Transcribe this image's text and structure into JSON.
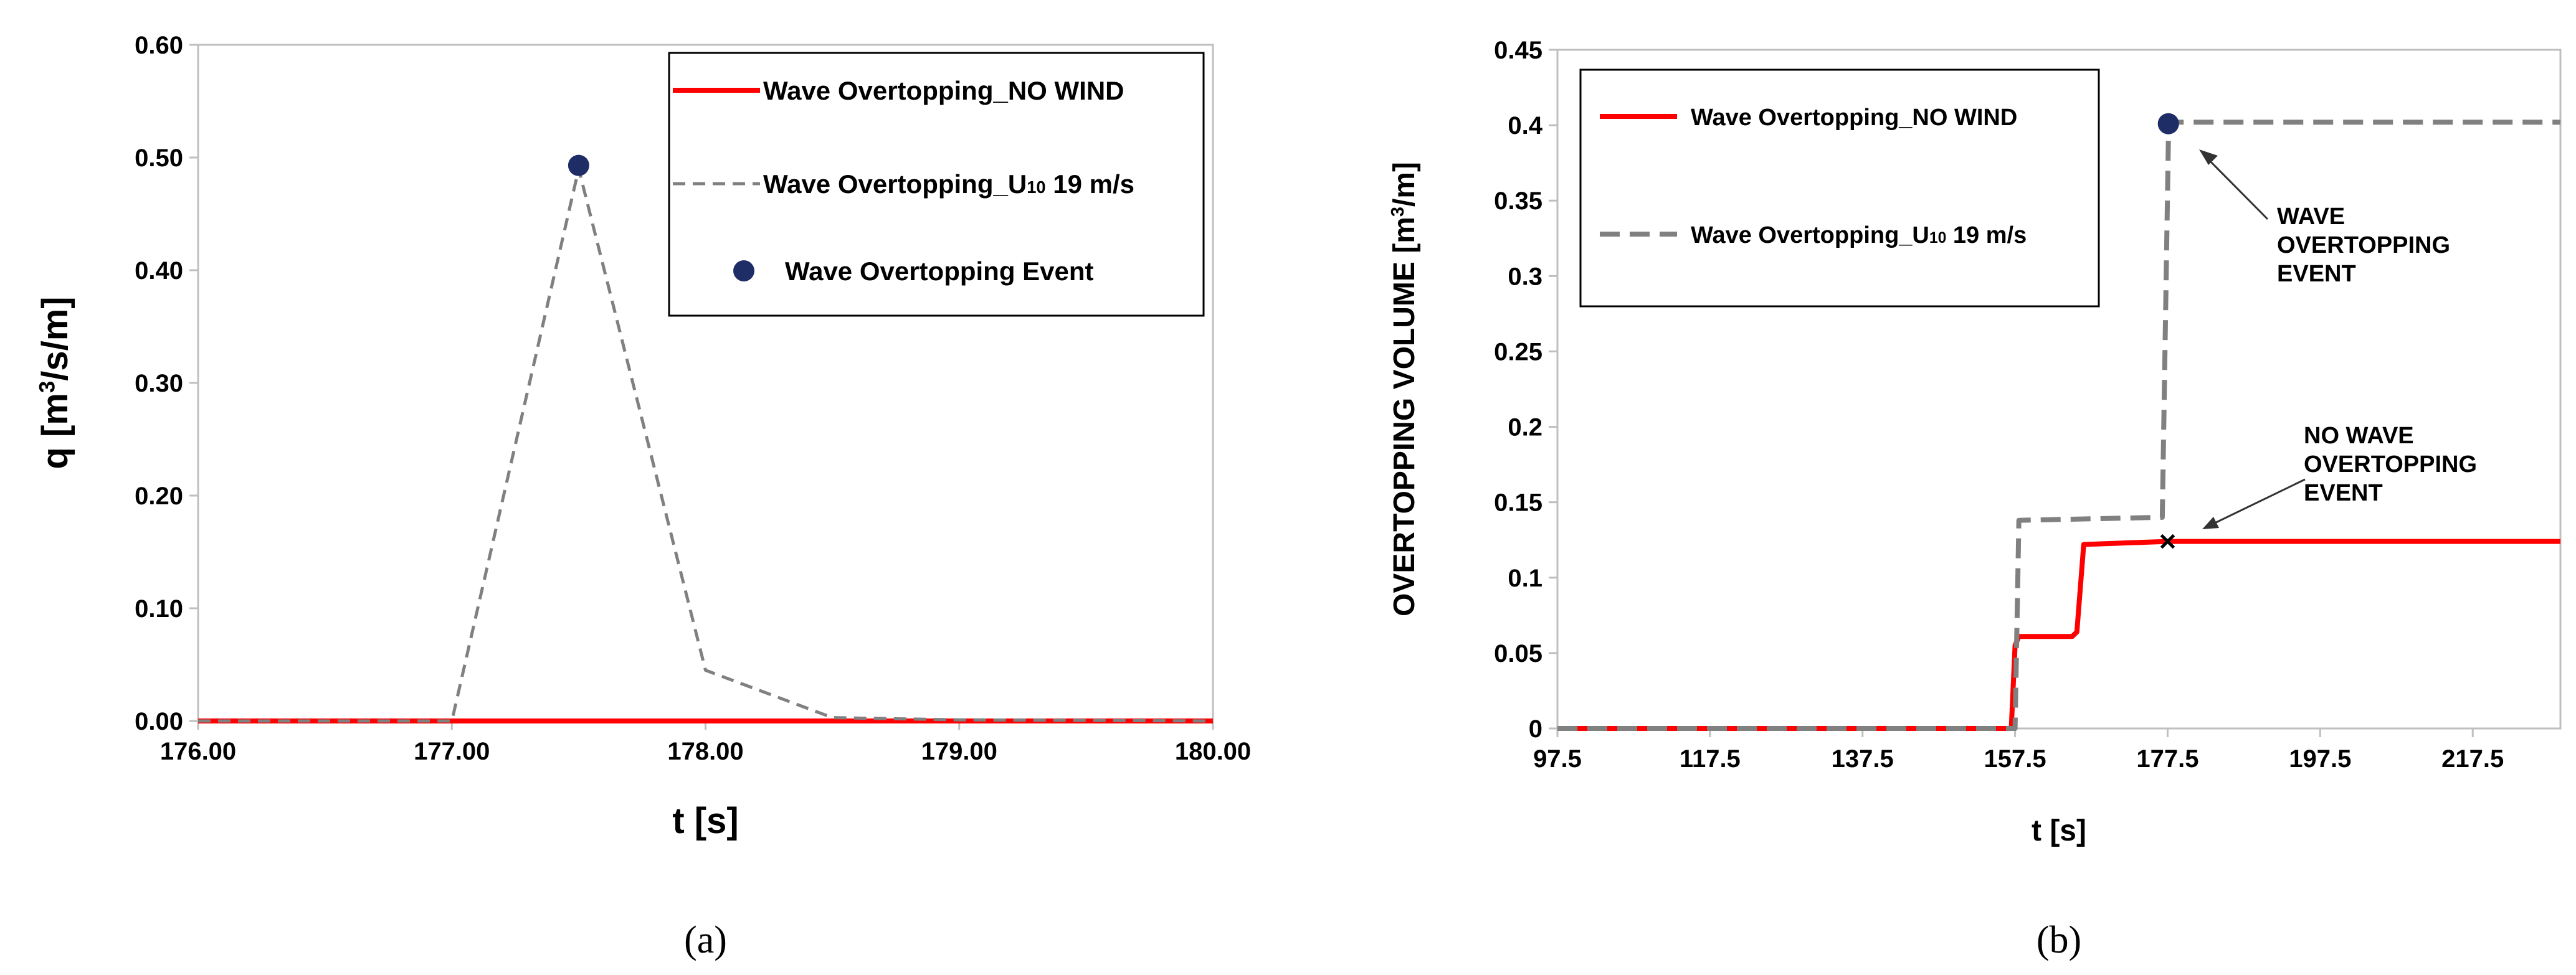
{
  "chart_data": [
    {
      "type": "line",
      "panel_label": "(a)",
      "xlabel": "t [s]",
      "ylabel_parts": [
        "q [m",
        "3",
        "/s/m]"
      ],
      "xlim": [
        176,
        180
      ],
      "ylim": [
        0,
        0.6
      ],
      "xticks": [
        "176.00",
        "177.00",
        "178.00",
        "179.00",
        "180.00"
      ],
      "yticks": [
        "0.00",
        "0.10",
        "0.20",
        "0.30",
        "0.40",
        "0.50",
        "0.60"
      ],
      "grid": false,
      "legend_position": "top-right",
      "legend": [
        {
          "parts": [
            "Wave Overtopping_NO WIND"
          ]
        },
        {
          "parts": [
            "Wave Overtopping_U",
            "10",
            " 19 m/s"
          ]
        },
        {
          "parts": [
            "Wave Overtopping Event"
          ]
        }
      ],
      "series": [
        {
          "name": "Wave Overtopping_NO WIND",
          "style": "solid",
          "color": "#ff0000",
          "x": [
            176,
            180
          ],
          "y": [
            0,
            0
          ]
        },
        {
          "name": "Wave Overtopping_U10 19 m/s",
          "style": "dashed",
          "color": "#808080",
          "x": [
            176,
            177,
            177.5,
            178,
            178.5,
            179,
            180
          ],
          "y": [
            0,
            0,
            0.49,
            0.045,
            0.003,
            0.001,
            0
          ]
        }
      ],
      "events": [
        {
          "x": 177.5,
          "y": 0.493,
          "color": "#1f2d66"
        }
      ]
    },
    {
      "type": "line",
      "panel_label": "(b)",
      "xlabel": "t [s]",
      "ylabel_parts": [
        "OVERTOPPING VOLUME [m",
        "3",
        "/m]"
      ],
      "xlim": [
        97.5,
        229
      ],
      "ylim": [
        0,
        0.45
      ],
      "xticks": [
        "97.5",
        "117.5",
        "137.5",
        "157.5",
        "177.5",
        "197.5",
        "217.5"
      ],
      "xtick_values": [
        97.5,
        117.5,
        137.5,
        157.5,
        177.5,
        197.5,
        217.5
      ],
      "yticks": [
        "0",
        "0.05",
        "0.1",
        "0.15",
        "0.2",
        "0.25",
        "0.3",
        "0.35",
        "0.4",
        "0.45"
      ],
      "grid": false,
      "legend_position": "top-left",
      "legend": [
        {
          "parts": [
            "Wave Overtopping_NO WIND"
          ]
        },
        {
          "parts": [
            "Wave Overtopping_U",
            "10",
            " 19 m/s"
          ]
        }
      ],
      "series": [
        {
          "name": "Wave Overtopping_NO WIND",
          "style": "solid",
          "color": "#ff0000",
          "x": [
            97.5,
            157.0,
            157.5,
            158.0,
            165.0,
            165.6,
            166.5,
            177.5,
            229
          ],
          "y": [
            0,
            0,
            0.055,
            0.061,
            0.061,
            0.064,
            0.122,
            0.124,
            0.124
          ]
        },
        {
          "name": "Wave Overtopping_U10 19 m/s",
          "style": "dashed",
          "color": "#808080",
          "x": [
            97.5,
            157.5,
            158.0,
            176.8,
            177.6,
            178.2,
            229
          ],
          "y": [
            0,
            0,
            0.138,
            0.14,
            0.39,
            0.402,
            0.402
          ]
        }
      ],
      "events": [
        {
          "x": 177.6,
          "y": 0.401,
          "color": "#1f2d66"
        }
      ],
      "non_events": [
        {
          "x": 177.5,
          "y": 0.124
        }
      ],
      "annotations": [
        {
          "lines": [
            "WAVE",
            "OVERTOPPING",
            "EVENT"
          ]
        },
        {
          "lines": [
            "NO WAVE",
            "OVERTOPPING",
            "EVENT"
          ]
        }
      ]
    }
  ]
}
